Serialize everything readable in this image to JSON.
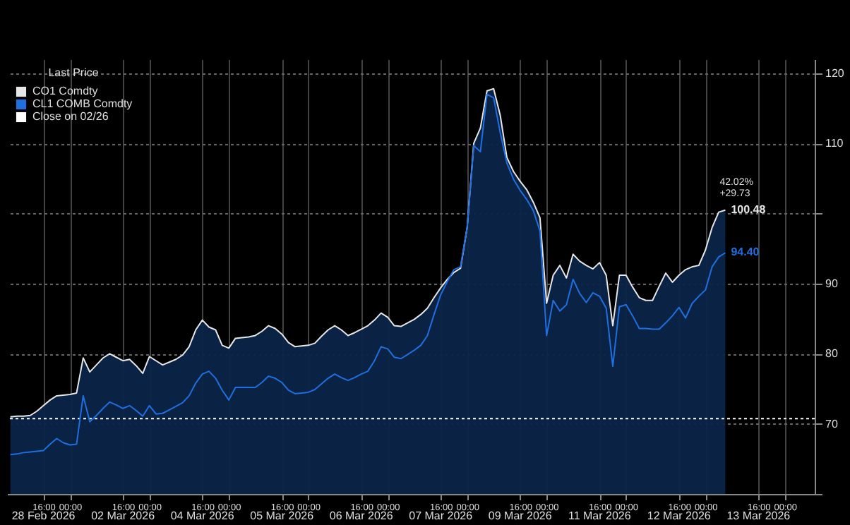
{
  "chart_data": {
    "type": "line",
    "legend_title": "Last Price",
    "legend": "top left",
    "grid": true,
    "categories": [
      null,
      null,
      null,
      null,
      null,
      "16:00",
      null,
      null,
      null,
      "00:00",
      null,
      null,
      null,
      null,
      null,
      null,
      null,
      "16:00",
      null,
      null,
      null,
      "00:00",
      null,
      null,
      null,
      null,
      null,
      null,
      null,
      "16:00",
      null,
      null,
      null,
      "00:00",
      null,
      null,
      null,
      null,
      null,
      null,
      null,
      "16:00",
      null,
      null,
      null,
      "00:00",
      null,
      null,
      null,
      null,
      null,
      null,
      null,
      "16:00",
      null,
      null,
      null,
      "00:00",
      null,
      null,
      null,
      null,
      null,
      null,
      null,
      "16:00",
      null,
      null,
      null,
      "00:00",
      null,
      null,
      null,
      null,
      null,
      null,
      null,
      "16:00",
      null,
      null,
      null,
      "00:00",
      null,
      null,
      null,
      null,
      null,
      null,
      null,
      "16:00",
      null,
      null,
      null,
      "00:00",
      null,
      null,
      null,
      null,
      null,
      null,
      null,
      "16:00",
      null,
      null,
      null,
      "00:00",
      null,
      null,
      null,
      null,
      null,
      null,
      null,
      "16:00",
      null,
      null,
      null,
      "00:00",
      null,
      null,
      null,
      null
    ],
    "ylim": [
      60,
      122
    ],
    "yticks": [
      {
        "value": 60,
        "label": null
      },
      70,
      80,
      90,
      {
        "value": 100,
        "label": null
      },
      110,
      120
    ],
    "series": [
      {
        "name": "CO1 Comdty",
        "type": "area",
        "color": "#e6e6e6",
        "values": [
          71.0,
          71.1,
          71.1,
          71.2,
          71.8,
          72.6,
          73.4,
          74.0,
          74.1,
          74.2,
          74.4,
          79.4,
          77.4,
          78.4,
          79.4,
          80.0,
          79.5,
          79.0,
          79.2,
          78.3,
          77.2,
          79.6,
          79.0,
          78.4,
          78.8,
          79.2,
          79.8,
          81.0,
          83.4,
          84.8,
          83.8,
          83.4,
          81.2,
          80.8,
          82.2,
          82.3,
          82.4,
          82.6,
          83.2,
          84.0,
          83.6,
          82.8,
          81.6,
          81.0,
          81.1,
          81.2,
          81.5,
          82.5,
          83.4,
          84.0,
          83.4,
          82.6,
          83.0,
          83.5,
          84.0,
          84.8,
          85.8,
          85.2,
          84.0,
          83.9,
          84.4,
          84.9,
          85.6,
          86.5,
          88.0,
          89.4,
          90.6,
          91.6,
          92.2,
          98.0,
          110.0,
          112.2,
          117.5,
          117.8,
          114.0,
          108.0,
          106.0,
          104.6,
          103.4,
          101.6,
          99.4,
          87.2,
          91.2,
          92.6,
          90.8,
          94.2,
          93.2,
          92.6,
          92.1,
          93.0,
          91.2,
          84.0,
          91.2,
          91.2,
          89.5,
          88.0,
          87.6,
          87.6,
          89.6,
          91.5,
          90.2,
          91.2,
          92.0,
          92.4,
          92.6,
          94.8,
          98.0,
          100.2,
          100.48,
          null,
          null,
          null,
          null,
          null,
          null,
          null,
          null,
          null,
          null,
          null,
          null,
          null
        ],
        "value_labels": [
          null,
          null,
          null,
          null,
          null,
          null,
          null,
          null,
          null,
          null,
          null,
          null,
          null,
          null,
          null,
          null,
          null,
          null,
          null,
          null,
          null,
          null,
          null,
          null,
          null,
          null,
          null,
          null,
          null,
          null,
          null,
          null,
          null,
          null,
          null,
          null,
          null,
          null,
          null,
          null,
          null,
          null,
          null,
          null,
          null,
          null,
          null,
          null,
          null,
          null,
          null,
          null,
          null,
          null,
          null,
          null,
          null,
          null,
          null,
          null,
          null,
          null,
          null,
          null,
          null,
          null,
          null,
          null,
          null,
          null,
          null,
          null,
          null,
          null,
          null,
          null,
          null,
          null,
          null,
          null,
          null,
          null,
          null,
          null,
          null,
          null,
          null,
          null,
          null,
          null,
          null,
          null,
          null,
          null,
          null,
          null,
          null,
          null,
          null,
          null,
          null,
          null,
          null,
          null,
          null,
          null,
          null,
          null,
          "100.48",
          null,
          null,
          null,
          null,
          null,
          null,
          null,
          null,
          null,
          null,
          null,
          null,
          null
        ]
      },
      {
        "name": "CL1 COMB Comdty",
        "color": "#1f6fe0",
        "values": [
          65.6,
          65.7,
          65.9,
          66.0,
          66.1,
          66.2,
          67.1,
          67.9,
          67.3,
          67.0,
          67.1,
          74.0,
          70.3,
          71.2,
          72.2,
          73.1,
          72.7,
          72.2,
          72.6,
          71.9,
          71.1,
          72.6,
          71.4,
          71.5,
          72.0,
          72.5,
          73.0,
          74.0,
          75.8,
          77.1,
          77.5,
          76.5,
          74.8,
          73.4,
          75.2,
          75.2,
          75.2,
          75.2,
          75.9,
          76.8,
          76.5,
          75.9,
          74.8,
          74.3,
          74.4,
          74.5,
          74.9,
          75.7,
          76.5,
          77.1,
          76.6,
          76.2,
          76.6,
          77.1,
          77.5,
          79.0,
          81.0,
          80.7,
          79.5,
          79.3,
          79.9,
          80.5,
          81.2,
          82.6,
          85.6,
          88.4,
          90.3,
          92.0,
          92.4,
          98.0,
          109.7,
          108.8,
          117.0,
          116.5,
          111.5,
          107.2,
          104.9,
          103.3,
          102.0,
          100.4,
          97.5,
          82.6,
          87.6,
          86.1,
          87.0,
          90.6,
          88.6,
          87.3,
          88.7,
          88.2,
          86.5,
          78.2,
          86.7,
          87.0,
          85.4,
          83.6,
          83.6,
          83.5,
          83.5,
          84.4,
          85.4,
          86.6,
          85.1,
          87.2,
          88.2,
          89.1,
          92.4,
          93.8,
          94.4,
          null,
          null,
          null,
          null,
          null,
          null,
          null,
          null,
          null,
          null,
          null,
          null,
          null
        ],
        "value_labels": [
          null,
          null,
          null,
          null,
          null,
          null,
          null,
          null,
          null,
          null,
          null,
          null,
          null,
          null,
          null,
          null,
          null,
          null,
          null,
          null,
          null,
          null,
          null,
          null,
          null,
          null,
          null,
          null,
          null,
          null,
          null,
          null,
          null,
          null,
          null,
          null,
          null,
          null,
          null,
          null,
          null,
          null,
          null,
          null,
          null,
          null,
          null,
          null,
          null,
          null,
          null,
          null,
          null,
          null,
          null,
          null,
          null,
          null,
          null,
          null,
          null,
          null,
          null,
          null,
          null,
          null,
          null,
          null,
          null,
          null,
          null,
          null,
          null,
          null,
          null,
          null,
          null,
          null,
          null,
          null,
          null,
          null,
          null,
          null,
          null,
          null,
          null,
          null,
          null,
          null,
          null,
          null,
          null,
          null,
          null,
          null,
          null,
          null,
          null,
          null,
          null,
          null,
          null,
          null,
          null,
          null,
          null,
          null,
          "94.40",
          null,
          null,
          null,
          null,
          null,
          null,
          null,
          null,
          null,
          null,
          null,
          null,
          null
        ]
      }
    ],
    "ref_lines": [
      {
        "axis": "y",
        "value": 70.75,
        "label": "Close on 02/26",
        "color": "#ffffff",
        "line_style": "dotted"
      }
    ],
    "annotations": [
      "42.02%",
      "+29.73",
      "28 Feb 2026",
      "02 Mar 2026",
      "04 Mar 2026",
      "05 Mar 2026",
      "06 Mar 2026",
      "07 Mar 2026",
      "09 Mar 2026",
      "11 Mar 2026",
      "12 Mar 2026",
      "13 Mar 2026"
    ]
  }
}
